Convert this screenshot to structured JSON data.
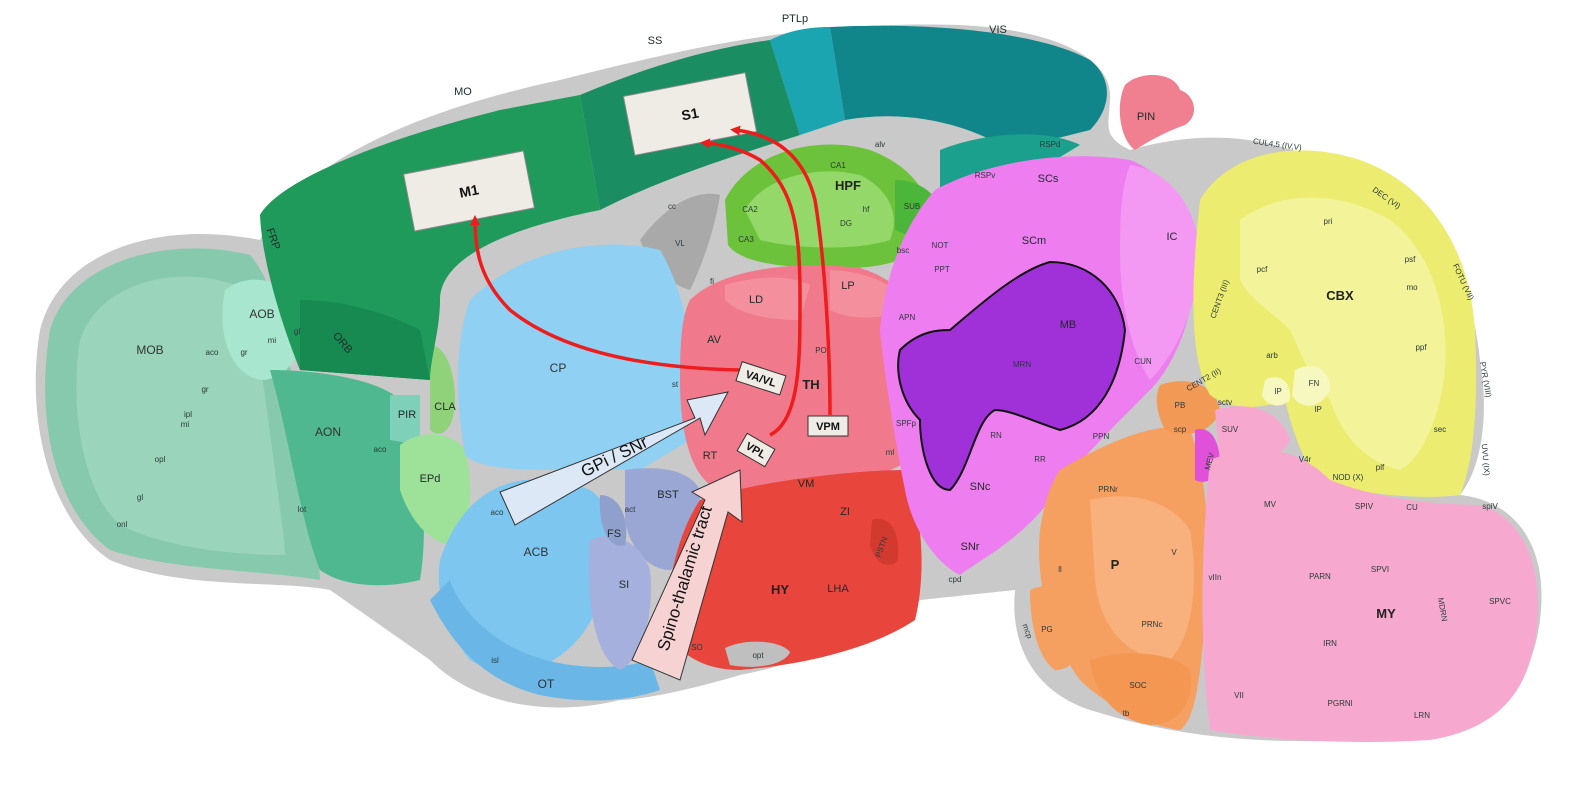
{
  "colors": {
    "olfactory": "#7cc4a6",
    "olfactory_dark": "#4fb08e",
    "cortex_motor": "#1f9a5a",
    "cortex_sensory": "#1a8e62",
    "cortex_vis": "#11868a",
    "ptl": "#1aa5b0",
    "hippocampus": "#6cc23a",
    "striatum": "#8fd0f3",
    "thalamus": "#f07a8c",
    "hypothalamus": "#e8453c",
    "midbrain": "#ee7ef0",
    "mrn": "#a030d8",
    "pons": "#f5a061",
    "medulla": "#f6a8cf",
    "cerebellum": "#ecec70",
    "pallidum": "#9aa6d4",
    "fiber": "#c8c8c8",
    "arrow_red": "#ee1c1c",
    "grey_box": "#efece6",
    "blue_arrow": "#dde8f6",
    "pink_arrow": "#f6d2d2"
  },
  "boxes": {
    "m1": "M1",
    "s1": "S1",
    "va_vl": "VA/VL",
    "vpl": "VPL",
    "vpm": "VPM"
  },
  "pathways": {
    "gpi_snr": "GPi / SNr",
    "spinothalamic": "Spino-thalamic tract"
  },
  "regions": {
    "MOB": "MOB",
    "AOB": "AOB",
    "AON": "AON",
    "ORB": "ORB",
    "FRP": "FRP",
    "PIR": "PIR",
    "CLA": "CLA",
    "EPd": "EPd",
    "MO": "MO",
    "SS": "SS",
    "PTLp": "PTLp",
    "VIS": "VIS",
    "RSPv": "RSPv",
    "RSPd": "RSPd",
    "CA1": "CA1",
    "CA2": "CA2",
    "CA3": "CA3",
    "HPF": "HPF",
    "DG": "DG",
    "SUB": "SUB",
    "VL": "VL",
    "cc": "cc",
    "fi": "fi",
    "alv": "alv",
    "hf": "hf",
    "CP": "CP",
    "ACB": "ACB",
    "FS": "FS",
    "SI": "SI",
    "BST": "BST",
    "OT": "OT",
    "LD": "LD",
    "LP": "LP",
    "AV": "AV",
    "PO": "PO",
    "TH": "TH",
    "RT": "RT",
    "VM": "VM",
    "SPFp": "SPFp",
    "st": "st",
    "ml": "ml",
    "ZI": "ZI",
    "HY": "HY",
    "LHA": "LHA",
    "PSTN": "PSTN",
    "SO": "SO",
    "opt": "opt",
    "PIN": "PIN",
    "SCs": "SCs",
    "SCm": "SCm",
    "IC": "IC",
    "NOT": "NOT",
    "PPT": "PPT",
    "APN": "APN",
    "MB": "MB",
    "MRN": "MRN",
    "CUN": "CUN",
    "RN": "RN",
    "RR": "RR",
    "PPN": "PPN",
    "SNc": "SNc",
    "SNr": "SNr",
    "cpd": "cpd",
    "bsc": "bsc",
    "PB": "PB",
    "scp": "scp",
    "MEV": "MEV",
    "PRNr": "PRNr",
    "P": "P",
    "V": "V",
    "PRNc": "PRNc",
    "SOC": "SOC",
    "PG": "PG",
    "ll": "ll",
    "mcp": "mcp",
    "tb": "tb",
    "vIIn": "vIIn",
    "CUL": "CUL4,5 (IV,V)",
    "DEC": "DEC (VI)",
    "FOTU": "FOTU (VII)",
    "CENT3": "CENT3 (III)",
    "CENT2": "CENT2 (II)",
    "CBX": "CBX",
    "PYR": "PYR (VIII)",
    "UVU": "UVU (IX)",
    "NOD": "NOD (X)",
    "arb": "arb",
    "FN": "FN",
    "IP": "IP",
    "SUV": "SUV",
    "V4r": "V4r",
    "sctv": "sctv",
    "MV": "MV",
    "SPIV": "SPIV",
    "CU": "CU",
    "spiV": "spiV",
    "PARN": "PARN",
    "SPVI": "SPVI",
    "MY": "MY",
    "MDRN": "MDRN",
    "SPVC": "SPVC",
    "IRN": "IRN",
    "VII": "VII",
    "PGRNl": "PGRNl",
    "LRN": "LRN",
    "aco": "aco",
    "gr": "gr",
    "gl": "gl",
    "mi": "mi",
    "ipl": "ipl",
    "opl": "opl",
    "onl": "onl",
    "lot": "lot",
    "isl": "isl",
    "act": "act",
    "pri": "pri",
    "pcf": "pcf",
    "psf": "psf",
    "ppf": "ppf",
    "sec": "sec",
    "plf": "plf",
    "mo": "mo"
  }
}
